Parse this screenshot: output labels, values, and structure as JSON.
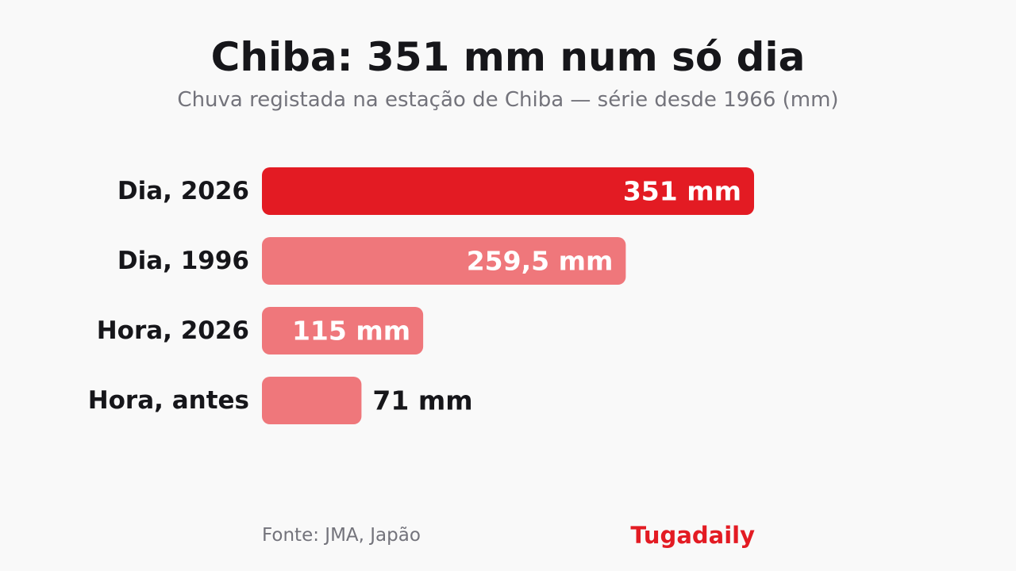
{
  "chart_data": {
    "type": "bar",
    "orientation": "horizontal",
    "title": "Chiba: 351 mm num só dia",
    "subtitle": "Chuva registada na estação de Chiba — série desde 1966 (mm)",
    "unit": "mm",
    "categories": [
      "Dia, 2026",
      "Dia, 1996",
      "Hora, 2026",
      "Hora, antes"
    ],
    "values": [
      351,
      259.5,
      115,
      71
    ],
    "value_labels": [
      "351 mm",
      "259,5 mm",
      "115 mm",
      "71 mm"
    ],
    "bar_colors": [
      "#e31b23",
      "#ef777b",
      "#ef777b",
      "#ef777b"
    ],
    "grid": false
  },
  "footer": {
    "source": "Fonte: JMA, Japão",
    "brand": "Tugadaily"
  },
  "colors": {
    "accent": "#e31b23",
    "secondary_bar": "#ef777b",
    "background": "#f9f9f9",
    "text_dark": "#16161a",
    "text_muted": "#73737b"
  }
}
